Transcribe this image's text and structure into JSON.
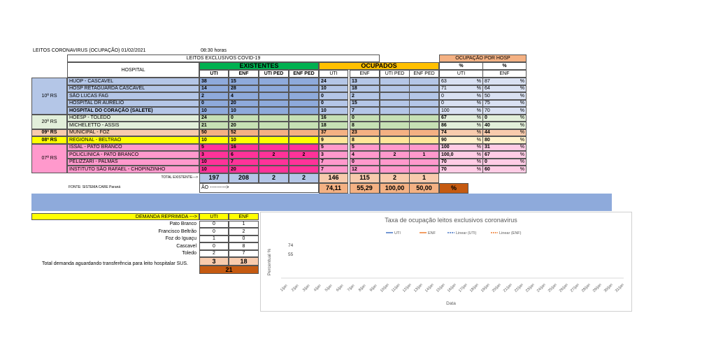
{
  "header": {
    "title": "LEITOS CORONAVIRUS (OCUPAÇÃO) 01/02/2021",
    "time": "08:30 horas",
    "subtitle": "LEITOS EXCLUSIVOS COVID-19",
    "occupancy_title": "OCUPAÇÃO POR HOSP"
  },
  "table": {
    "col_hospital": "HOSPITAL",
    "existentes": "EXISTENTES",
    "ocupados": "OCUPADOS",
    "pct_headers": [
      "%",
      "%"
    ],
    "subcols": [
      "UTI",
      "ENF",
      "UTI PED",
      "ENF PED"
    ],
    "pct_subcols": [
      "UTI",
      "ENF"
    ],
    "regions": [
      {
        "label": "10ª RS",
        "rows": [
          {
            "hospital": "HUOP - CASCAVEL",
            "existentes": [
              38,
              15
            ],
            "ocupados": [
              24,
              13
            ],
            "pct": [
              "63",
              "%",
              "87",
              "%"
            ]
          },
          {
            "hospital": "HOSP RETAGUARDA CASCAVEL",
            "existentes": [
              14,
              28
            ],
            "ocupados": [
              10,
              18
            ],
            "pct": [
              "71",
              "%",
              "64",
              "%"
            ]
          },
          {
            "hospital": "SÃO LUCAS FAG",
            "existentes": [
              2,
              4
            ],
            "ocupados": [
              0,
              2
            ],
            "pct": [
              "0",
              "%",
              "50",
              "%"
            ]
          },
          {
            "hospital": "HOSPITAL DR AURELIO",
            "existentes": [
              0,
              20
            ],
            "ocupados": [
              0,
              15
            ],
            "pct": [
              "0",
              "%",
              "75",
              "%"
            ]
          },
          {
            "hospital": "HOSPITAL DO CORAÇÃO (SALETE)",
            "existentes": [
              10,
              10
            ],
            "ocupados": [
              10,
              7
            ],
            "pct": [
              "100",
              "%",
              "70",
              "%"
            ]
          }
        ]
      },
      {
        "label": "20ª RS",
        "rows": [
          {
            "hospital": "HOESP - TOLEDO",
            "existentes": [
              24,
              0
            ],
            "ocupados": [
              16,
              0
            ],
            "pct": [
              "67",
              "%",
              "0",
              "%"
            ]
          },
          {
            "hospital": "MICHELETTO - ASSIS",
            "existentes": [
              21,
              20
            ],
            "ocupados": [
              18,
              8
            ],
            "pct": [
              "86",
              "%",
              "40",
              "%"
            ]
          }
        ]
      },
      {
        "label": "09ª RS",
        "rows": [
          {
            "hospital": "MUNICIPAL - FOZ",
            "existentes": [
              50,
              52
            ],
            "ocupados": [
              37,
              23
            ],
            "pct": [
              "74",
              "%",
              "44",
              "%"
            ]
          }
        ]
      },
      {
        "label": "08ª RS",
        "rows": [
          {
            "hospital": "REGIONAL - BELTRAO",
            "existentes": [
              10,
              10
            ],
            "ocupados": [
              9,
              8
            ],
            "pct": [
              "90",
              "%",
              "80",
              "%"
            ]
          }
        ]
      },
      {
        "label": "07ª RS",
        "rows": [
          {
            "hospital": "ISSAL - PATO BRANCO",
            "existentes": [
              5,
              16
            ],
            "ocupados": [
              5,
              5
            ],
            "pct": [
              "100",
              "%",
              "31",
              "%"
            ]
          },
          {
            "hospital": "POLICLINICA - PATO BRANCO",
            "existentes": [
              3,
              6,
              2,
              2
            ],
            "ocupados": [
              3,
              4,
              2,
              1
            ],
            "pct": [
              "100,0",
              "%",
              "67",
              "%"
            ]
          },
          {
            "hospital": "PELIZZARI - PALMAS",
            "existentes": [
              10,
              7
            ],
            "ocupados": [
              7,
              0
            ],
            "pct": [
              "70",
              "%",
              "0",
              "%"
            ]
          },
          {
            "hospital": "INSTITUTO SÃO RAFAEL - CHOPINZINHO",
            "existentes": [
              10,
              20
            ],
            "ocupados": [
              7,
              12
            ],
            "pct": [
              "70",
              "%",
              "60",
              "%"
            ]
          }
        ]
      }
    ],
    "total_label": "TOTAL EXISTENTE--->",
    "total_existentes": [
      197,
      208,
      2,
      2
    ],
    "total_ocupados": [
      146,
      115,
      2,
      1
    ],
    "source": "FONTE: SISTEMA CARE Paraná",
    "rate_label": "ÃO ---------->",
    "rates": [
      "74,11",
      "55,29",
      "100,00",
      "50,00"
    ],
    "rate_unit": "%"
  },
  "demand": {
    "label": "DEMANDA REPRIMIDA --->",
    "cols": [
      "UTI",
      "ENF"
    ],
    "rows": [
      {
        "city": "Pato Branco",
        "uti": 0,
        "enf": 1
      },
      {
        "city": "Francisco Beltrão",
        "uti": 0,
        "enf": 2
      },
      {
        "city": "Foz do Iguaçu",
        "uti": 1,
        "enf": 0
      },
      {
        "city": "Cascavel",
        "uti": 0,
        "enf": 8
      },
      {
        "city": "Toledo",
        "uti": 2,
        "enf": 7
      }
    ],
    "totals": [
      3,
      18
    ],
    "grand_total": 21,
    "note": "Total demanda aguardando transferência para leito hospitalar SUS."
  },
  "chart": {
    "title": "Taxa de ocupação leitos exclusivos coronavirus",
    "legend": [
      "UTI",
      "ENF",
      "Linear (UTI)",
      "Linear (ENF)"
    ],
    "y_label": "Percentual %",
    "labels": [
      "74",
      "55"
    ],
    "x_label": "Data",
    "x": [
      "1/jan",
      "2/jan",
      "3/jan",
      "4/jan",
      "5/jan",
      "6/jan",
      "7/jan",
      "8/jan",
      "9/jan",
      "10/jan",
      "11/jan",
      "12/jan",
      "13/jan",
      "14/jan",
      "15/jan",
      "16/jan",
      "17/jan",
      "18/jan",
      "19/jan",
      "20/jan",
      "21/jan",
      "22/jan",
      "23/jan",
      "24/jan",
      "25/jan",
      "26/jan",
      "27/jan",
      "28/jan",
      "29/jan",
      "30/jan",
      "31/jan"
    ]
  }
}
